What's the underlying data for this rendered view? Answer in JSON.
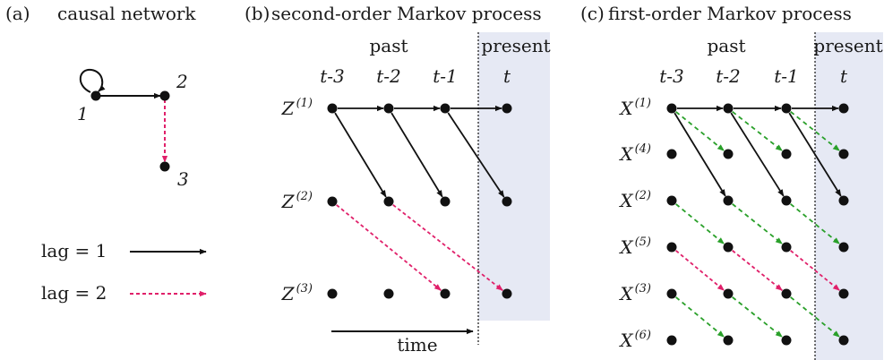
{
  "colors": {
    "lag1": "#111111",
    "lag2": "#e0206a",
    "auto": "#2aa02a",
    "present_bg": "#e6e9f4"
  },
  "panel_a": {
    "tag": "(a)",
    "title": "causal network",
    "nodes": [
      "1",
      "2",
      "3"
    ],
    "legend": [
      {
        "label": "lag = 1",
        "style": "solid",
        "color": "#111111"
      },
      {
        "label": "lag = 2",
        "style": "dashed",
        "color": "#e0206a"
      }
    ]
  },
  "panel_b": {
    "tag": "(b)",
    "title": "second-order Markov process",
    "past_label": "past",
    "present_label": "present",
    "time_cols": [
      "t-3",
      "t-2",
      "t-1",
      "t"
    ],
    "rows": [
      {
        "var": "Z",
        "sup": "(1)"
      },
      {
        "var": "Z",
        "sup": "(2)"
      },
      {
        "var": "Z",
        "sup": "(3)"
      }
    ],
    "time_label": "time"
  },
  "panel_c": {
    "tag": "(c)",
    "title": "first-order Markov process",
    "past_label": "past",
    "present_label": "present",
    "time_cols": [
      "t-3",
      "t-2",
      "t-1",
      "t"
    ],
    "rows": [
      {
        "var": "X",
        "sup": "(1)"
      },
      {
        "var": "X",
        "sup": "(4)"
      },
      {
        "var": "X",
        "sup": "(2)"
      },
      {
        "var": "X",
        "sup": "(5)"
      },
      {
        "var": "X",
        "sup": "(3)"
      },
      {
        "var": "X",
        "sup": "(6)"
      }
    ]
  }
}
